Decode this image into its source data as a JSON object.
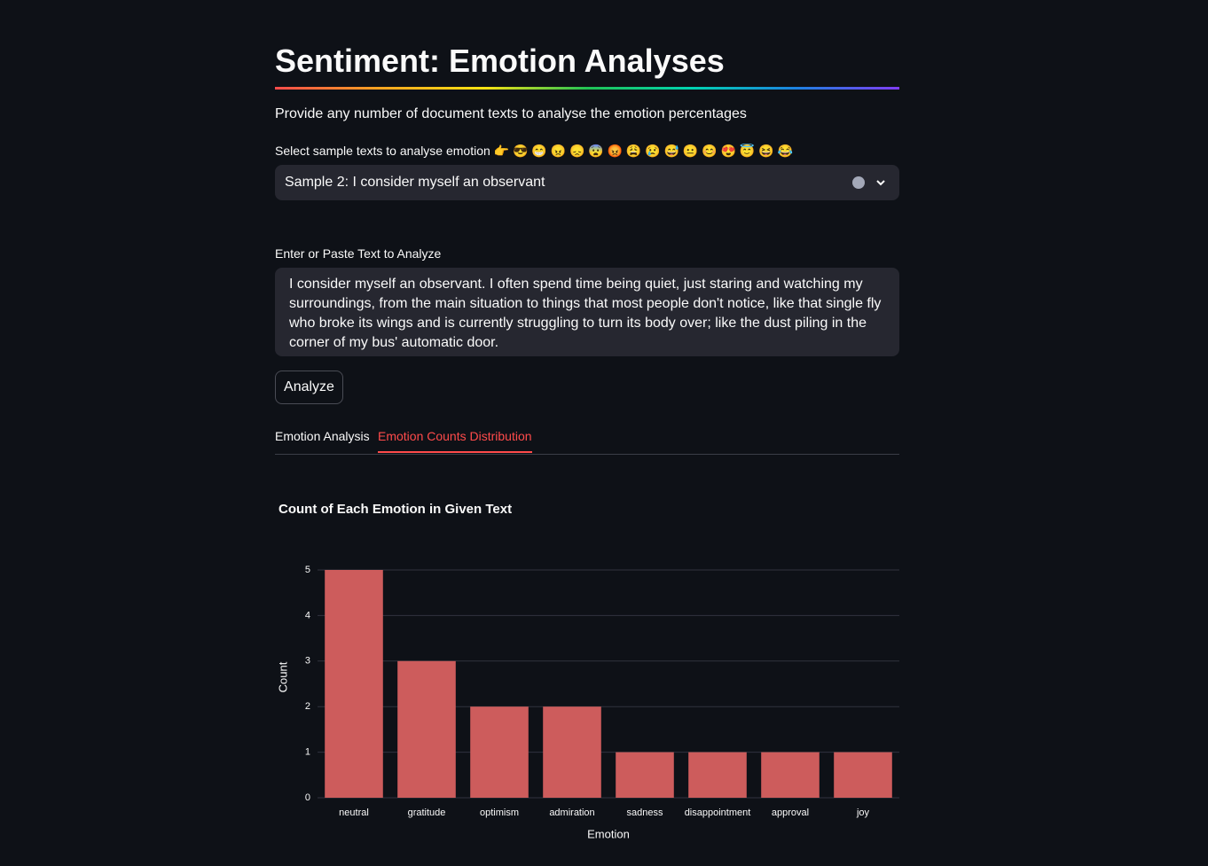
{
  "header": {
    "title": "Sentiment: Emotion Analyses",
    "subtitle": "Provide any number of document texts to analyse the emotion percentages"
  },
  "select": {
    "label": "Select sample texts to analyse emotion 👉 😎 😁 😠 😞 😨 😡 😩 😢 😅 😐 😊 😍 😇 😆 😂",
    "value": "Sample 2: I consider myself an observant"
  },
  "text_input": {
    "label": "Enter or Paste Text to Analyze",
    "text": "I consider myself an observant. I often spend time being quiet, just staring and watching my surroundings, from the main situation to things that most people don't notice, like that single fly who broke its wings and is currently struggling to turn its body over; like the dust piling in the corner of my bus' automatic door."
  },
  "button": {
    "label": "Analyze"
  },
  "tabs": [
    "Emotion Analysis",
    "Emotion Counts Distribution"
  ],
  "chart_data": {
    "type": "bar",
    "title": "Count of Each Emotion in Given Text",
    "x_label": "Emotion",
    "y_label": "Count",
    "categories": [
      "neutral",
      "gratitude",
      "optimism",
      "admiration",
      "sadness",
      "disappointment",
      "approval",
      "joy"
    ],
    "values": [
      5,
      3,
      2,
      2,
      1,
      1,
      1,
      1
    ],
    "color": "#cd5c5c",
    "ylim": [
      0,
      5
    ],
    "yticks": [
      0,
      1,
      2,
      3,
      4,
      5
    ],
    "grid": true
  }
}
